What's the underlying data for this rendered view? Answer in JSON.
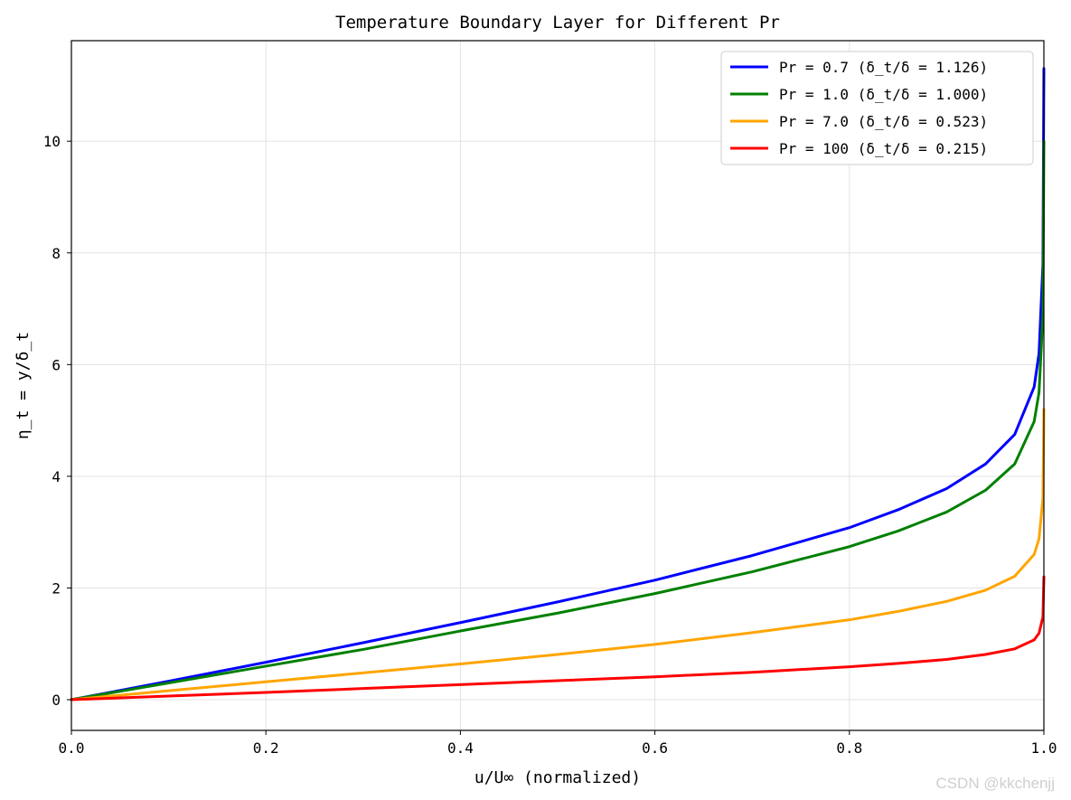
{
  "chart_data": {
    "type": "line",
    "title": "Temperature Boundary Layer for Different Pr",
    "xlabel": "u/U∞ (normalized)",
    "ylabel": "η_t = y/δ_t",
    "xlim": [
      0.0,
      1.0
    ],
    "ylim": [
      -0.55,
      11.8
    ],
    "xticks": [
      0.0,
      0.2,
      0.4,
      0.6,
      0.8,
      1.0
    ],
    "xtick_labels": [
      "0.0",
      "0.2",
      "0.4",
      "0.6",
      "0.8",
      "1.0"
    ],
    "yticks": [
      0,
      2,
      4,
      6,
      8,
      10
    ],
    "ytick_labels": [
      "0",
      "2",
      "4",
      "6",
      "8",
      "10"
    ],
    "grid": true,
    "legend_position": "top-right",
    "series": [
      {
        "name": "Pr = 0.7 (δ_t/δ = 1.126)",
        "color": "#0000ff",
        "x": [
          0,
          0.1,
          0.2,
          0.3,
          0.4,
          0.5,
          0.6,
          0.7,
          0.8,
          0.85,
          0.9,
          0.94,
          0.97,
          0.99,
          0.995,
          0.999,
          1.0
        ],
        "y": [
          0,
          0.33,
          0.67,
          1.02,
          1.38,
          1.75,
          2.14,
          2.58,
          3.08,
          3.4,
          3.78,
          4.22,
          4.75,
          5.6,
          6.2,
          7.8,
          11.3
        ]
      },
      {
        "name": "Pr = 1.0 (δ_t/δ = 1.000)",
        "color": "#008000",
        "x": [
          0,
          0.1,
          0.2,
          0.3,
          0.4,
          0.5,
          0.6,
          0.7,
          0.8,
          0.85,
          0.9,
          0.94,
          0.97,
          0.99,
          0.995,
          0.999,
          1.0
        ],
        "y": [
          0,
          0.3,
          0.6,
          0.9,
          1.23,
          1.55,
          1.9,
          2.29,
          2.74,
          3.02,
          3.36,
          3.75,
          4.22,
          4.98,
          5.5,
          6.9,
          10.0
        ]
      },
      {
        "name": "Pr = 7.0 (δ_t/δ = 0.523)",
        "color": "#ffa500",
        "x": [
          0,
          0.1,
          0.2,
          0.3,
          0.4,
          0.5,
          0.6,
          0.7,
          0.8,
          0.85,
          0.9,
          0.94,
          0.97,
          0.99,
          0.995,
          0.999,
          1.0
        ],
        "y": [
          0,
          0.16,
          0.32,
          0.48,
          0.64,
          0.81,
          0.99,
          1.2,
          1.43,
          1.58,
          1.76,
          1.96,
          2.21,
          2.6,
          2.88,
          3.6,
          5.2
        ]
      },
      {
        "name": "Pr = 100 (δ_t/δ = 0.215)",
        "color": "#ff0000",
        "x": [
          0,
          0.1,
          0.2,
          0.3,
          0.4,
          0.5,
          0.6,
          0.7,
          0.8,
          0.85,
          0.9,
          0.94,
          0.97,
          0.99,
          0.995,
          0.999,
          1.0
        ],
        "y": [
          0,
          0.065,
          0.13,
          0.2,
          0.27,
          0.34,
          0.41,
          0.49,
          0.59,
          0.65,
          0.72,
          0.81,
          0.91,
          1.07,
          1.19,
          1.48,
          2.2
        ]
      }
    ]
  },
  "watermark": "CSDN @kkchenjj"
}
